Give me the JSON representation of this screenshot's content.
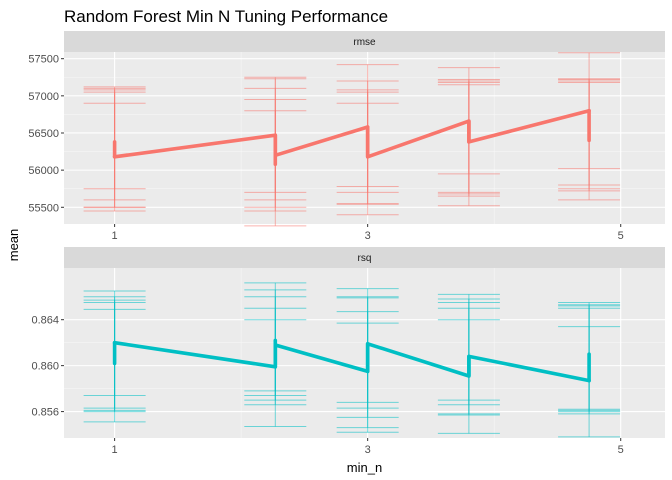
{
  "chart_data": {
    "type": "line",
    "title": "Random Forest Min N Tuning Performance",
    "xlabel": "min_n",
    "ylabel": "mean",
    "x_ticks": [
      1,
      3,
      5
    ],
    "x_range": [
      0.6,
      5.35
    ],
    "colors": {
      "rmse": "#F8766D",
      "rsq": "#00BFC4"
    },
    "panels": [
      {
        "name": "rmse",
        "color": "#F8766D",
        "y_range": [
          55275,
          57590
        ],
        "y_ticks": [
          55500,
          56000,
          56500,
          57000,
          57500
        ],
        "y_tick_labels": [
          "55500",
          "56000",
          "56500",
          "57000",
          "57500"
        ],
        "line": [
          {
            "x": 1,
            "y": 56180
          },
          {
            "x": 2.27,
            "y": 56470
          },
          {
            "x": 2.27,
            "y": 56200
          },
          {
            "x": 3,
            "y": 56580
          },
          {
            "x": 3,
            "y": 56180
          },
          {
            "x": 3.8,
            "y": 56660
          },
          {
            "x": 3.8,
            "y": 56380
          },
          {
            "x": 4.75,
            "y": 56800
          }
        ],
        "errorbars": [
          {
            "x": 1,
            "y": 56180,
            "ymin": 55450,
            "ymax": 57100
          },
          {
            "x": 1,
            "y": 56180,
            "ymin": 55500,
            "ymax": 57120
          },
          {
            "x": 1,
            "y": 56180,
            "ymin": 55600,
            "ymax": 56900
          },
          {
            "x": 1,
            "y": 56180,
            "ymin": 55500,
            "ymax": 57050
          },
          {
            "x": 1,
            "y": 56180,
            "ymin": 55750,
            "ymax": 57080
          },
          {
            "x": 2.27,
            "y": 56470,
            "ymin": 55250,
            "ymax": 57250
          },
          {
            "x": 2.27,
            "y": 56200,
            "ymin": 55500,
            "ymax": 57100
          },
          {
            "x": 2.27,
            "y": 56200,
            "ymin": 55600,
            "ymax": 56950
          },
          {
            "x": 2.27,
            "y": 56200,
            "ymin": 55700,
            "ymax": 56800
          },
          {
            "x": 2.27,
            "y": 56470,
            "ymin": 55450,
            "ymax": 57230
          },
          {
            "x": 3,
            "y": 56580,
            "ymin": 55400,
            "ymax": 57420
          },
          {
            "x": 3,
            "y": 56180,
            "ymin": 55550,
            "ymax": 57200
          },
          {
            "x": 3,
            "y": 56180,
            "ymin": 55700,
            "ymax": 57050
          },
          {
            "x": 3,
            "y": 56180,
            "ymin": 55780,
            "ymax": 56900
          },
          {
            "x": 3,
            "y": 56580,
            "ymin": 55540,
            "ymax": 57080
          },
          {
            "x": 3.8,
            "y": 56660,
            "ymin": 55520,
            "ymax": 57380
          },
          {
            "x": 3.8,
            "y": 56380,
            "ymin": 55650,
            "ymax": 57180
          },
          {
            "x": 3.8,
            "y": 56380,
            "ymin": 55700,
            "ymax": 57200
          },
          {
            "x": 3.8,
            "y": 56380,
            "ymin": 55950,
            "ymax": 57150
          },
          {
            "x": 3.8,
            "y": 56660,
            "ymin": 55680,
            "ymax": 57220
          },
          {
            "x": 4.75,
            "y": 56800,
            "ymin": 55600,
            "ymax": 57580
          },
          {
            "x": 4.75,
            "y": 56400,
            "ymin": 55750,
            "ymax": 57220
          },
          {
            "x": 4.75,
            "y": 56400,
            "ymin": 55800,
            "ymax": 57200
          },
          {
            "x": 4.75,
            "y": 56400,
            "ymin": 56020,
            "ymax": 57180
          },
          {
            "x": 4.75,
            "y": 56800,
            "ymin": 55720,
            "ymax": 57230
          }
        ],
        "points": [
          {
            "x": 1,
            "ymin": 56180,
            "ymax": 56380
          },
          {
            "x": 2.27,
            "ymin": 56080,
            "ymax": 56470
          },
          {
            "x": 3,
            "ymin": 56180,
            "ymax": 56580
          },
          {
            "x": 3.8,
            "ymin": 56380,
            "ymax": 56660
          },
          {
            "x": 4.75,
            "ymin": 56400,
            "ymax": 56800
          }
        ]
      },
      {
        "name": "rsq",
        "color": "#00BFC4",
        "y_range": [
          0.8537,
          0.8685
        ],
        "y_ticks": [
          0.856,
          0.86,
          0.864
        ],
        "y_tick_labels": [
          "0.856",
          "0.860",
          "0.864"
        ],
        "line": [
          {
            "x": 1,
            "y": 0.862
          },
          {
            "x": 2.27,
            "y": 0.8599
          },
          {
            "x": 2.27,
            "y": 0.8618
          },
          {
            "x": 3,
            "y": 0.8595
          },
          {
            "x": 3,
            "y": 0.8619
          },
          {
            "x": 3.8,
            "y": 0.8591
          },
          {
            "x": 3.8,
            "y": 0.8608
          },
          {
            "x": 4.75,
            "y": 0.8587
          }
        ],
        "errorbars": [
          {
            "x": 1,
            "y": 0.862,
            "ymin": 0.8551,
            "ymax": 0.8665
          },
          {
            "x": 1,
            "y": 0.862,
            "ymin": 0.8563,
            "ymax": 0.866
          },
          {
            "x": 1,
            "y": 0.862,
            "ymin": 0.8561,
            "ymax": 0.8649
          },
          {
            "x": 1,
            "y": 0.862,
            "ymin": 0.8574,
            "ymax": 0.8657
          },
          {
            "x": 1,
            "y": 0.862,
            "ymin": 0.856,
            "ymax": 0.8655
          },
          {
            "x": 2.27,
            "y": 0.8599,
            "ymin": 0.8547,
            "ymax": 0.8672
          },
          {
            "x": 2.27,
            "y": 0.8618,
            "ymin": 0.8566,
            "ymax": 0.866
          },
          {
            "x": 2.27,
            "y": 0.8618,
            "ymin": 0.857,
            "ymax": 0.865
          },
          {
            "x": 2.27,
            "y": 0.8618,
            "ymin": 0.8578,
            "ymax": 0.864
          },
          {
            "x": 2.27,
            "y": 0.8599,
            "ymin": 0.8574,
            "ymax": 0.8666
          },
          {
            "x": 3,
            "y": 0.8595,
            "ymin": 0.8542,
            "ymax": 0.8667
          },
          {
            "x": 3,
            "y": 0.8619,
            "ymin": 0.8555,
            "ymax": 0.8659
          },
          {
            "x": 3,
            "y": 0.8619,
            "ymin": 0.8563,
            "ymax": 0.8647
          },
          {
            "x": 3,
            "y": 0.8619,
            "ymin": 0.8568,
            "ymax": 0.8637
          },
          {
            "x": 3,
            "y": 0.8595,
            "ymin": 0.8546,
            "ymax": 0.866
          },
          {
            "x": 3.8,
            "y": 0.8591,
            "ymin": 0.8541,
            "ymax": 0.8662
          },
          {
            "x": 3.8,
            "y": 0.8608,
            "ymin": 0.8558,
            "ymax": 0.8658
          },
          {
            "x": 3.8,
            "y": 0.8608,
            "ymin": 0.8566,
            "ymax": 0.865
          },
          {
            "x": 3.8,
            "y": 0.8608,
            "ymin": 0.857,
            "ymax": 0.864
          },
          {
            "x": 3.8,
            "y": 0.8591,
            "ymin": 0.8557,
            "ymax": 0.8655
          },
          {
            "x": 4.75,
            "y": 0.8587,
            "ymin": 0.8538,
            "ymax": 0.8655
          },
          {
            "x": 4.75,
            "y": 0.861,
            "ymin": 0.8558,
            "ymax": 0.8652
          },
          {
            "x": 4.75,
            "y": 0.861,
            "ymin": 0.8561,
            "ymax": 0.865
          },
          {
            "x": 4.75,
            "y": 0.861,
            "ymin": 0.856,
            "ymax": 0.8634
          },
          {
            "x": 4.75,
            "y": 0.8587,
            "ymin": 0.8562,
            "ymax": 0.8653
          }
        ],
        "points": [
          {
            "x": 1,
            "ymin": 0.8602,
            "ymax": 0.862
          },
          {
            "x": 2.27,
            "ymin": 0.8599,
            "ymax": 0.8622
          },
          {
            "x": 3,
            "ymin": 0.8595,
            "ymax": 0.8619
          },
          {
            "x": 3.8,
            "ymin": 0.8591,
            "ymax": 0.8608
          },
          {
            "x": 4.75,
            "ymin": 0.8587,
            "ymax": 0.861
          }
        ]
      }
    ]
  }
}
